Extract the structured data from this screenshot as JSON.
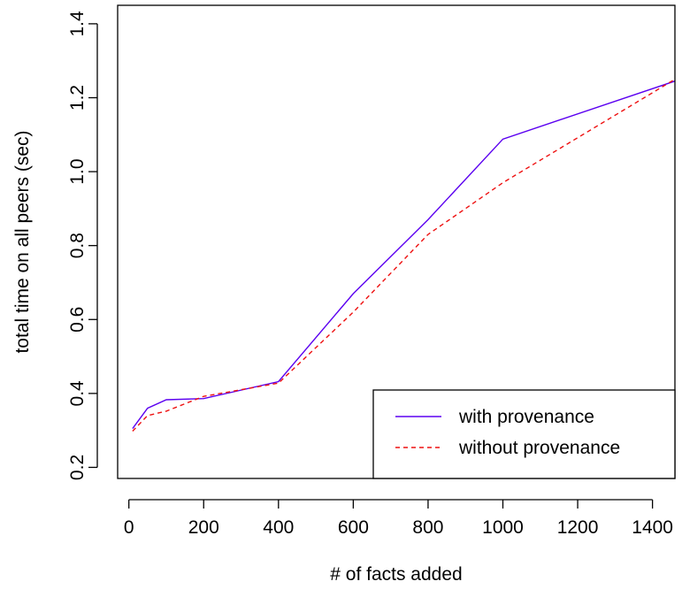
{
  "chart_data": {
    "type": "line",
    "xlabel": "# of facts added",
    "ylabel": "total time on all peers (sec)",
    "xlim": [
      -30,
      1460
    ],
    "ylim": [
      0.17,
      1.45
    ],
    "xticks": [
      0,
      200,
      400,
      600,
      800,
      1000,
      1200,
      1400
    ],
    "yticks": [
      0.2,
      0.4,
      0.6,
      0.8,
      1.0,
      1.2,
      1.4
    ],
    "ytick_labels": [
      "0.2",
      "0.4",
      "0.6",
      "0.8",
      "1.0",
      "1.2",
      "1.4"
    ],
    "legend_position": "bottom-right",
    "series": [
      {
        "name": "with provenance",
        "color": "#5b00f0",
        "dash": "solid",
        "x": [
          10,
          50,
          100,
          200,
          400,
          600,
          800,
          1000,
          1460
        ],
        "y": [
          0.305,
          0.36,
          0.383,
          0.386,
          0.432,
          0.67,
          0.87,
          1.088,
          1.245
        ]
      },
      {
        "name": "without provenance",
        "color": "#ee1111",
        "dash": "dashed",
        "x": [
          10,
          50,
          100,
          200,
          400,
          600,
          800,
          1000,
          1460
        ],
        "y": [
          0.298,
          0.34,
          0.352,
          0.392,
          0.428,
          0.62,
          0.83,
          0.97,
          1.25
        ]
      }
    ]
  }
}
